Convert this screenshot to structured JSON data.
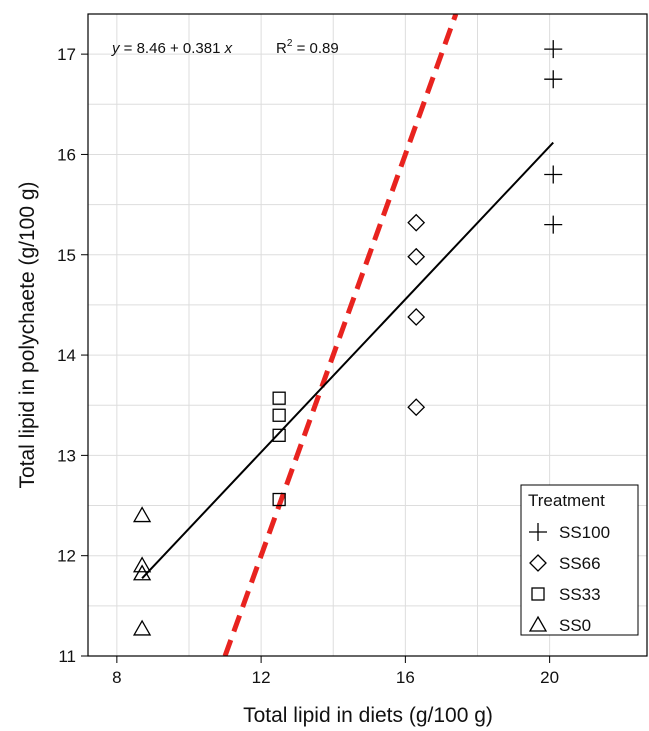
{
  "chart_data": {
    "type": "scatter",
    "xlabel": "Total lipid in diets (g/100 g)",
    "ylabel": "Total lipid in polychaete (g/100 g)",
    "xlim": [
      7.2,
      22.7
    ],
    "ylim": [
      11.0,
      17.4
    ],
    "xticks": [
      8,
      12,
      16,
      20
    ],
    "yticks": [
      11,
      12,
      13,
      14,
      15,
      16,
      17
    ],
    "x_minor_grid": [
      10,
      14,
      18
    ],
    "y_minor_grid": [
      11.5,
      12.5,
      13.5,
      14.5,
      15.5,
      16.5
    ],
    "grid": true,
    "annotation": {
      "y_var": "y",
      "rhs": " = 8.46 + 0.381 ",
      "x_var": "x",
      "r2_base": "R",
      "r2_exp": "2",
      "r2_value": " = 0.89"
    },
    "regression_line": {
      "intercept": 8.46,
      "slope": 0.381,
      "x_range": [
        8.7,
        20.1
      ],
      "color": "#000000"
    },
    "reference_line": {
      "intercept": 0,
      "slope": 1,
      "x_range": [
        11,
        17.4
      ],
      "color": "#e8231f",
      "style": "dashed"
    },
    "legend": {
      "title": "Treatment",
      "position": "bottom-right"
    },
    "series": [
      {
        "name": "SS100",
        "marker": "plus",
        "points": [
          [
            20.1,
            17.05
          ],
          [
            20.1,
            16.75
          ],
          [
            20.1,
            15.8
          ],
          [
            20.1,
            15.3
          ]
        ]
      },
      {
        "name": "SS66",
        "marker": "diamond",
        "points": [
          [
            16.3,
            15.32
          ],
          [
            16.3,
            14.98
          ],
          [
            16.3,
            14.38
          ],
          [
            16.3,
            13.48
          ]
        ]
      },
      {
        "name": "SS33",
        "marker": "square",
        "points": [
          [
            12.5,
            13.57
          ],
          [
            12.5,
            13.4
          ],
          [
            12.5,
            13.2
          ],
          [
            12.5,
            12.56
          ]
        ]
      },
      {
        "name": "SS0",
        "marker": "triangle",
        "points": [
          [
            8.7,
            12.4
          ],
          [
            8.7,
            11.9
          ],
          [
            8.7,
            11.82
          ],
          [
            8.7,
            11.27
          ]
        ]
      }
    ]
  }
}
